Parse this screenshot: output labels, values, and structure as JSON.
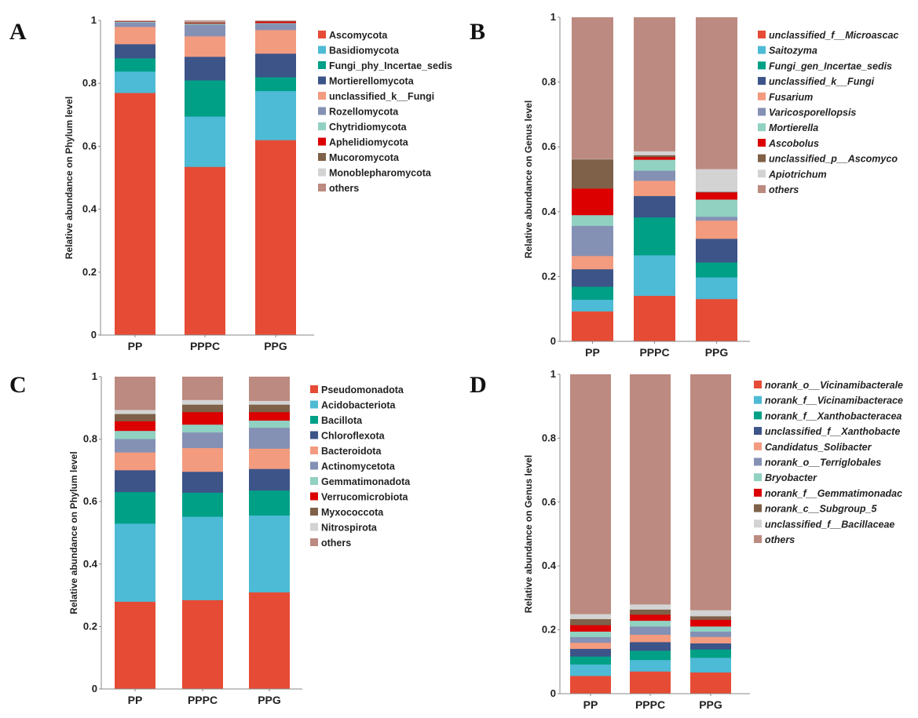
{
  "palette": [
    "#E64B35",
    "#4DBBD5",
    "#00A087",
    "#3C5488",
    "#F39B7F",
    "#8491B4",
    "#91D1C2",
    "#DC0000",
    "#7E6148",
    "#D3D3D3",
    "#BC8A80"
  ],
  "chart_data": [
    {
      "panel": "A",
      "type": "bar",
      "stacked": true,
      "ylabel": "Relative abundance on Phylum level",
      "xlabel": "",
      "ylim": [
        0,
        1
      ],
      "yticks": [
        "0",
        "0.2",
        "0.4",
        "0.6",
        "0.8",
        "1"
      ],
      "categories": [
        "PP",
        "PPPC",
        "PPG"
      ],
      "italic_legend": false,
      "legend": "right",
      "series": [
        {
          "name": "Ascomycota",
          "values": [
            0.77,
            0.535,
            0.62
          ]
        },
        {
          "name": "Basidiomycota",
          "values": [
            0.068,
            0.16,
            0.156
          ]
        },
        {
          "name": "Fungi_phy_Incertae_sedis",
          "values": [
            0.042,
            0.115,
            0.044
          ]
        },
        {
          "name": "Mortierellomycota",
          "values": [
            0.045,
            0.075,
            0.075
          ]
        },
        {
          "name": "unclassified_k__Fungi",
          "values": [
            0.055,
            0.065,
            0.075
          ]
        },
        {
          "name": "Rozellomycota",
          "values": [
            0.014,
            0.037,
            0.02
          ]
        },
        {
          "name": "Chytridiomycota",
          "values": [
            0.002,
            0.003,
            0.002
          ]
        },
        {
          "name": "Aphelidiomycota",
          "values": [
            0.001,
            0.002,
            0.005
          ]
        },
        {
          "name": "Mucoromycota",
          "values": [
            0.001,
            0.003,
            0.001
          ]
        },
        {
          "name": "Monoblepharomycota",
          "values": [
            0.001,
            0.002,
            0.001
          ]
        },
        {
          "name": "others",
          "values": [
            0.001,
            0.003,
            0.001
          ]
        }
      ]
    },
    {
      "panel": "B",
      "type": "bar",
      "stacked": true,
      "ylabel": "Relative abundance on Genus level",
      "xlabel": "",
      "ylim": [
        0,
        1
      ],
      "yticks": [
        "0",
        "0.2",
        "0.4",
        "0.6",
        "0.8",
        "1"
      ],
      "categories": [
        "PP",
        "PPPC",
        "PPG"
      ],
      "italic_legend": true,
      "legend": "right",
      "series": [
        {
          "name": "unclassified_f__Microascac",
          "values": [
            0.093,
            0.141,
            0.131
          ]
        },
        {
          "name": "Saitozyma",
          "values": [
            0.036,
            0.125,
            0.067
          ]
        },
        {
          "name": "Fungi_gen_Incertae_sedis",
          "values": [
            0.04,
            0.117,
            0.046
          ]
        },
        {
          "name": "unclassified_k__Fungi",
          "values": [
            0.054,
            0.066,
            0.073
          ]
        },
        {
          "name": "Fusarium",
          "values": [
            0.041,
            0.047,
            0.056
          ]
        },
        {
          "name": "Varicosporellopsis",
          "values": [
            0.093,
            0.031,
            0.012
          ]
        },
        {
          "name": "Mortierella",
          "values": [
            0.033,
            0.034,
            0.053
          ]
        },
        {
          "name": "Ascobolus",
          "values": [
            0.082,
            0.008,
            0.022
          ]
        },
        {
          "name": "unclassified_p__Ascomyco",
          "values": [
            0.09,
            0.006,
            0.002
          ]
        },
        {
          "name": "Apiotrichum",
          "values": [
            0.001,
            0.012,
            0.07
          ]
        },
        {
          "name": "others",
          "values": [
            0.437,
            0.413,
            0.468
          ]
        }
      ]
    },
    {
      "panel": "C",
      "type": "bar",
      "stacked": true,
      "ylabel": "Relative abundance on Phylum level",
      "xlabel": "",
      "ylim": [
        0,
        1
      ],
      "yticks": [
        "0",
        "0.2",
        "0.4",
        "0.6",
        "0.8",
        "1"
      ],
      "categories": [
        "PP",
        "PPPC",
        "PPG"
      ],
      "italic_legend": false,
      "legend": "right",
      "series": [
        {
          "name": "Pseudomonadota",
          "values": [
            0.28,
            0.285,
            0.31
          ]
        },
        {
          "name": "Acidobacteriota",
          "values": [
            0.25,
            0.267,
            0.246
          ]
        },
        {
          "name": "Bacillota",
          "values": [
            0.101,
            0.077,
            0.08
          ]
        },
        {
          "name": "Chloroflexota",
          "values": [
            0.07,
            0.067,
            0.069
          ]
        },
        {
          "name": "Bacteroidota",
          "values": [
            0.057,
            0.076,
            0.065
          ]
        },
        {
          "name": "Actinomycetota",
          "values": [
            0.043,
            0.05,
            0.067
          ]
        },
        {
          "name": "Gemmatimonadota",
          "values": [
            0.026,
            0.025,
            0.023
          ]
        },
        {
          "name": "Verrucomicrobiota",
          "values": [
            0.031,
            0.04,
            0.027
          ]
        },
        {
          "name": "Myxococcota",
          "values": [
            0.023,
            0.024,
            0.024
          ]
        },
        {
          "name": "Nitrospirota",
          "values": [
            0.013,
            0.015,
            0.012
          ]
        },
        {
          "name": "others",
          "values": [
            0.106,
            0.074,
            0.077
          ]
        }
      ]
    },
    {
      "panel": "D",
      "type": "bar",
      "stacked": true,
      "ylabel": "Relative abundance on Genus level",
      "xlabel": "",
      "ylim": [
        0,
        1
      ],
      "yticks": [
        "0",
        "0.2",
        "0.4",
        "0.6",
        "0.8",
        "1"
      ],
      "categories": [
        "PP",
        "PPPC",
        "PPG"
      ],
      "italic_legend": true,
      "legend": "right",
      "series": [
        {
          "name": "norank_o__Vicinamibacterale",
          "values": [
            0.056,
            0.07,
            0.067
          ]
        },
        {
          "name": "norank_f__Vicinamibacterace",
          "values": [
            0.036,
            0.036,
            0.046
          ]
        },
        {
          "name": "norank_f__Xanthobacteracea",
          "values": [
            0.025,
            0.029,
            0.026
          ]
        },
        {
          "name": "unclassified_f__Xanthobacte",
          "values": [
            0.024,
            0.027,
            0.019
          ]
        },
        {
          "name": "Candidatus_Solibacter",
          "values": [
            0.019,
            0.023,
            0.02
          ]
        },
        {
          "name": "norank_o__Terriglobales",
          "values": [
            0.018,
            0.026,
            0.017
          ]
        },
        {
          "name": "Bryobacter",
          "values": [
            0.017,
            0.018,
            0.016
          ]
        },
        {
          "name": "norank_f__Gemmatimonadac",
          "values": [
            0.02,
            0.019,
            0.021
          ]
        },
        {
          "name": "norank_c__Subgroup_5",
          "values": [
            0.019,
            0.016,
            0.011
          ]
        },
        {
          "name": "unclassified_f__Bacillaceae",
          "values": [
            0.016,
            0.016,
            0.019
          ]
        },
        {
          "name": "others",
          "values": [
            0.75,
            0.72,
            0.738
          ]
        }
      ]
    }
  ]
}
